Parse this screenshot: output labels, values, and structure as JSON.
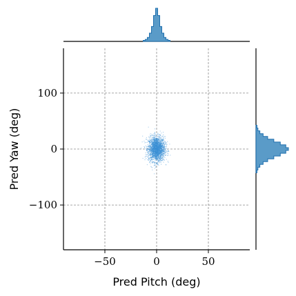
{
  "chart_data": {
    "type": "scatter",
    "title": "",
    "xlabel": "Pred Pitch (deg)",
    "ylabel": "Pred Yaw (deg)",
    "xlim": [
      -90,
      90
    ],
    "ylim": [
      -180,
      180
    ],
    "xticks": [
      -50,
      0,
      50
    ],
    "xtick_labels": [
      "−50",
      "0",
      "50"
    ],
    "yticks": [
      100,
      0,
      -100
    ],
    "ytick_labels": [
      "100",
      "0",
      "−100"
    ],
    "grid": true,
    "point_color": "#3a8fd6",
    "hist_color": "#5a9bc8",
    "hist_edge_color": "#1f6fae",
    "distribution": {
      "pitch_mean": 0,
      "pitch_std": 4,
      "yaw_mean": 0,
      "yaw_std": 11
    },
    "marginal_x": {
      "centers": [
        -12,
        -10,
        -8,
        -6,
        -4,
        -2,
        0,
        2,
        4,
        6,
        8,
        10,
        12
      ],
      "density": [
        0.03,
        0.06,
        0.12,
        0.25,
        0.45,
        0.78,
        1.0,
        0.78,
        0.45,
        0.25,
        0.12,
        0.06,
        0.03
      ]
    },
    "marginal_y": {
      "centers": [
        -40,
        -35,
        -30,
        -25,
        -20,
        -15,
        -10,
        -5,
        0,
        5,
        10,
        15,
        20,
        25,
        30,
        35,
        40
      ],
      "density": [
        0.03,
        0.06,
        0.12,
        0.22,
        0.36,
        0.55,
        0.75,
        0.92,
        1.0,
        0.92,
        0.75,
        0.55,
        0.36,
        0.22,
        0.12,
        0.06,
        0.03
      ]
    }
  }
}
